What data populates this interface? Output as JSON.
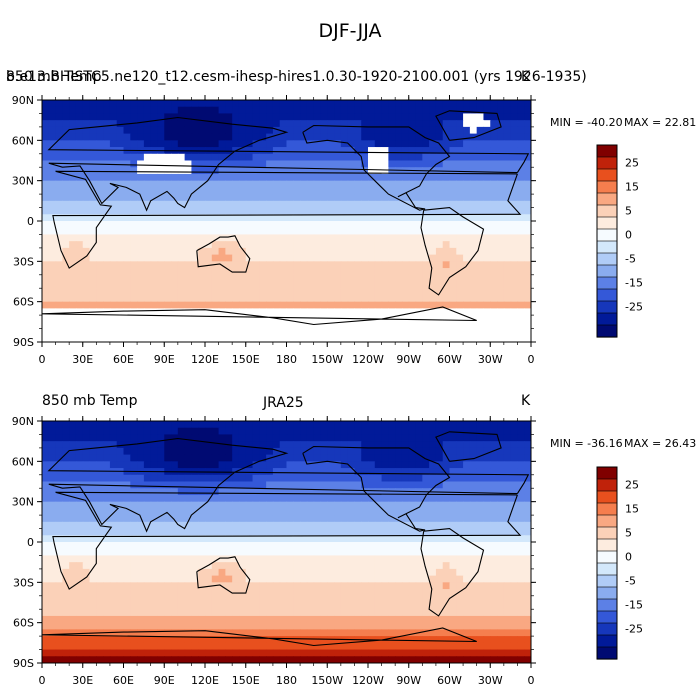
{
  "figure": {
    "title": "DJF-JJA"
  },
  "panels": [
    {
      "id": "model",
      "left_label": "850 mb Temp",
      "center_label": "b.e13.BHISTC5.ne120_t12.cesm-ihesp-hires1.0.30-1920-2100.001 (yrs 1926-1935)",
      "units": "K",
      "min_label": "MIN = -40.20",
      "max_label": "MAX =  22.81",
      "min": -40.2,
      "max": 22.81,
      "missing_over_high_terrain": true
    },
    {
      "id": "reanalysis",
      "left_label": "850 mb Temp",
      "center_label": "JRA25",
      "units": "K",
      "min_label": "MIN = -36.16",
      "max_label": "MAX =  26.43",
      "min": -36.16,
      "max": 26.43,
      "missing_over_high_terrain": false
    }
  ],
  "axes": {
    "x_ticks": [
      "0",
      "30E",
      "60E",
      "90E",
      "120E",
      "150E",
      "180",
      "150W",
      "120W",
      "90W",
      "60W",
      "30W",
      "0"
    ],
    "y_ticks": [
      "90N",
      "60N",
      "30N",
      "0",
      "30S",
      "60S",
      "90S"
    ]
  },
  "colorbar": {
    "labels": [
      "25",
      "15",
      "5",
      "0",
      "-5",
      "-15",
      "-25"
    ],
    "colors": [
      "#800000",
      "#c0220a",
      "#e8501e",
      "#f57e4e",
      "#f9a882",
      "#fbd1b8",
      "#fdecdf",
      "#f6fbff",
      "#d3e8fb",
      "#b0ccf7",
      "#8aacef",
      "#5c80e6",
      "#3458d8",
      "#1637bb",
      "#011a99",
      "#000a72"
    ]
  },
  "colors": {
    "missing": "#ffffff",
    "coastline": "#000000"
  }
}
